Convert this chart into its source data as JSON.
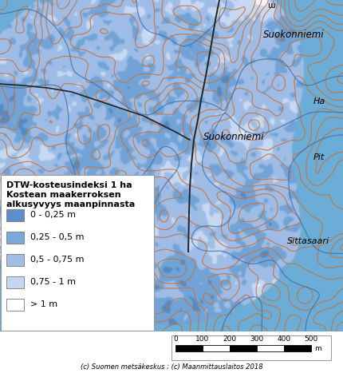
{
  "title_line1": "DTW-kosteusindeksi 1 ha",
  "title_line2": "Kostean maakerroksen",
  "title_line3": "alkusyvyys maanpinnasta",
  "legend_labels": [
    "0 - 0,25 m",
    "0,25 - 0,5 m",
    "0,5 - 0,75 m",
    "0,75 - 1 m",
    "> 1 m"
  ],
  "legend_colors": [
    "#5B8FC9",
    "#7AAAD8",
    "#A3BCE6",
    "#C5D6F0",
    "#FFFFFF"
  ],
  "water_color": "#6BAED6",
  "land_outer_color": "#88AACC",
  "scalebar_ticks": [
    "0",
    "100",
    "200",
    "300",
    "400",
    "500"
  ],
  "scalebar_unit": "m",
  "copyright_text": "(c) Suomen metsäkeskus ; (c) Maanmittauslaitos 2018",
  "place_top_right": "Suokonniemi",
  "place_mid_right": "Suokonniemi",
  "place_ha": "Ha",
  "place_pit": "Pit",
  "place_sittasaari": "Sittasaari",
  "contour_orange": "#C87137",
  "contour_blue_outline": "#3A6EA5",
  "road_color": "#222222",
  "legend_title_fontsize": 8,
  "legend_label_fontsize": 8,
  "bg_color": "#FFFFFF",
  "figwidth": 4.31,
  "figheight": 4.72,
  "dpi": 100
}
